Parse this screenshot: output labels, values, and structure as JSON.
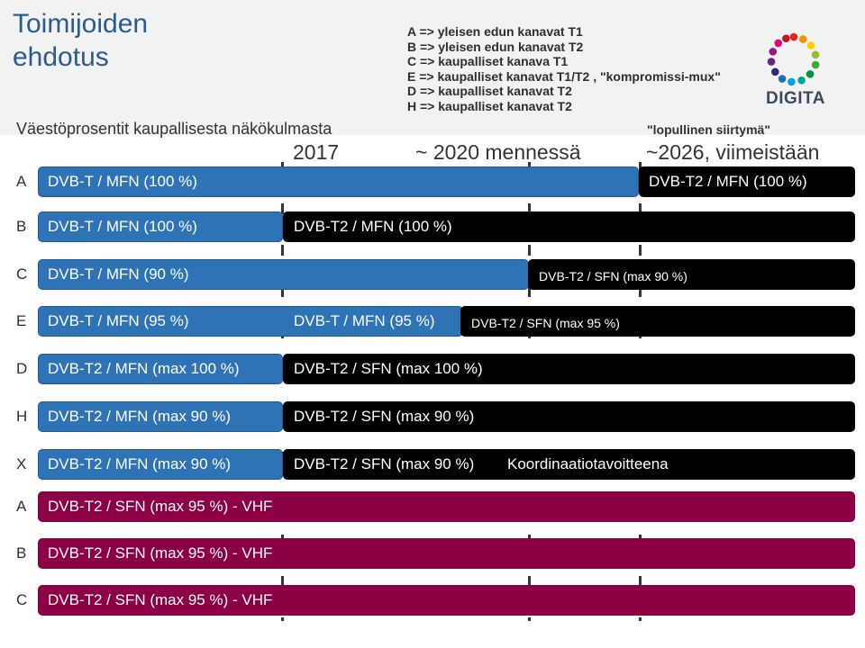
{
  "header": {
    "title_line1": "Toimijoiden",
    "title_line2": "ehdotus",
    "subtitle": "Väestöprosentit kaupallisesta näkökulmasta",
    "final_transition": "\"lopullinen siirtymä\"",
    "logo_text": "DIGITA"
  },
  "legend": [
    "A => yleisen edun kanavat T1",
    "B => yleisen edun kanavat T2",
    "C => kaupalliset kanava T1",
    "E => kaupalliset kanavat T1/T2 , \"kompromissi-mux\"",
    "D => kaupalliset kanavat T2",
    "H => kaupalliset kanavat T2"
  ],
  "periods": [
    "2017",
    "~ 2020 mennessä",
    "~2026, viimeistään"
  ],
  "rows": [
    {
      "label": "A",
      "segments": [
        "DVB-T / MFN (100 %)",
        "DVB-T2 / MFN (100 %)"
      ]
    },
    {
      "label": "B",
      "segments": [
        "DVB-T / MFN (100 %)",
        "DVB-T2 / MFN (100 %)"
      ]
    },
    {
      "label": "C",
      "segments": [
        "DVB-T / MFN (90 %)",
        "DVB-T2 / SFN (max 90 %)"
      ]
    },
    {
      "label": "E",
      "segments": [
        "DVB-T / MFN (95 %)",
        "DVB-T / MFN (95 %)",
        "DVB-T2 / SFN (max 95 %)"
      ]
    },
    {
      "label": "D",
      "segments": [
        "DVB-T2 / MFN (max 100 %)",
        "DVB-T2 / SFN (max 100 %)"
      ]
    },
    {
      "label": "H",
      "segments": [
        "DVB-T2 / MFN (max 90 %)",
        "DVB-T2 / SFN (max 90 %)"
      ]
    },
    {
      "label": "X",
      "segments": [
        "DVB-T2 / MFN (max 90 %)",
        "DVB-T2 / SFN (max 90 %)",
        "Koordinaatiotavoitteena"
      ]
    },
    {
      "label": "A",
      "segments": [
        "DVB-T2 / SFN (max 95 %) - VHF"
      ]
    },
    {
      "label": "B",
      "segments": [
        "DVB-T2 / SFN (max 95 %) - VHF"
      ]
    },
    {
      "label": "C",
      "segments": [
        "DVB-T2 / SFN (max 95 %) - VHF"
      ]
    }
  ],
  "colors": {
    "blue": "#2e73b6",
    "black": "#000000",
    "maroon": "#8c0046",
    "title": "#2b5a8c",
    "header_bg": "#f2f2f2"
  }
}
